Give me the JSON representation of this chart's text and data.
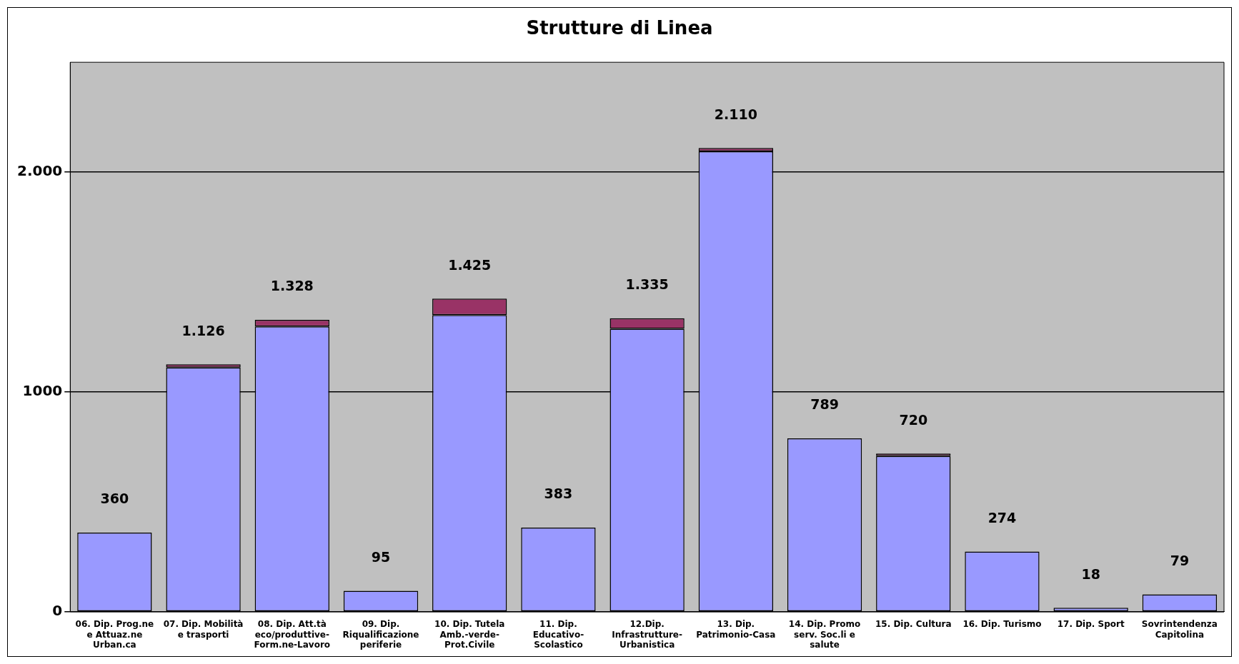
{
  "chart_data": {
    "type": "bar",
    "title": "Strutture di Linea",
    "stacked": true,
    "categories": [
      "06. Dip. Prog.ne e Attuaz.ne Urban.ca",
      "07. Dip. Mobilità e trasporti",
      "08. Dip. Att.tà eco/produttive- Form.ne-Lavoro",
      "09. Dip. Riqualificazione periferie",
      "10. Dip. Tutela Amb.-verde- Prot.Civile",
      "11. Dip. Educativo- Scolastico",
      "12.Dip. Infrastrutture- Urbanistica",
      "13. Dip. Patrimonio-Casa",
      "14. Dip. Promo serv. Soc.li e salute",
      "15. Dip. Cultura",
      "16. Dip. Turismo",
      "17. Dip. Sport",
      "Sovrintendenza Capitolina"
    ],
    "series": [
      {
        "color": "#9999ff",
        "values": [
          360,
          1111,
          1298,
          95,
          1350,
          383,
          1287,
          2095,
          789,
          708,
          274,
          18,
          79
        ]
      },
      {
        "color": "#993366",
        "values": [
          0,
          15,
          30,
          0,
          75,
          0,
          48,
          15,
          0,
          12,
          0,
          0,
          0
        ]
      }
    ],
    "totals": [
      "360",
      "1.126",
      "1.328",
      "95",
      "1.425",
      "383",
      "1.335",
      "2.110",
      "789",
      "720",
      "274",
      "18",
      "79"
    ],
    "ylim": [
      0,
      2500
    ],
    "yticks": [
      0,
      {
        "value": 1000,
        "label": "1000"
      },
      {
        "value": 2000,
        "label": "2.000"
      }
    ],
    "grid": "y"
  }
}
